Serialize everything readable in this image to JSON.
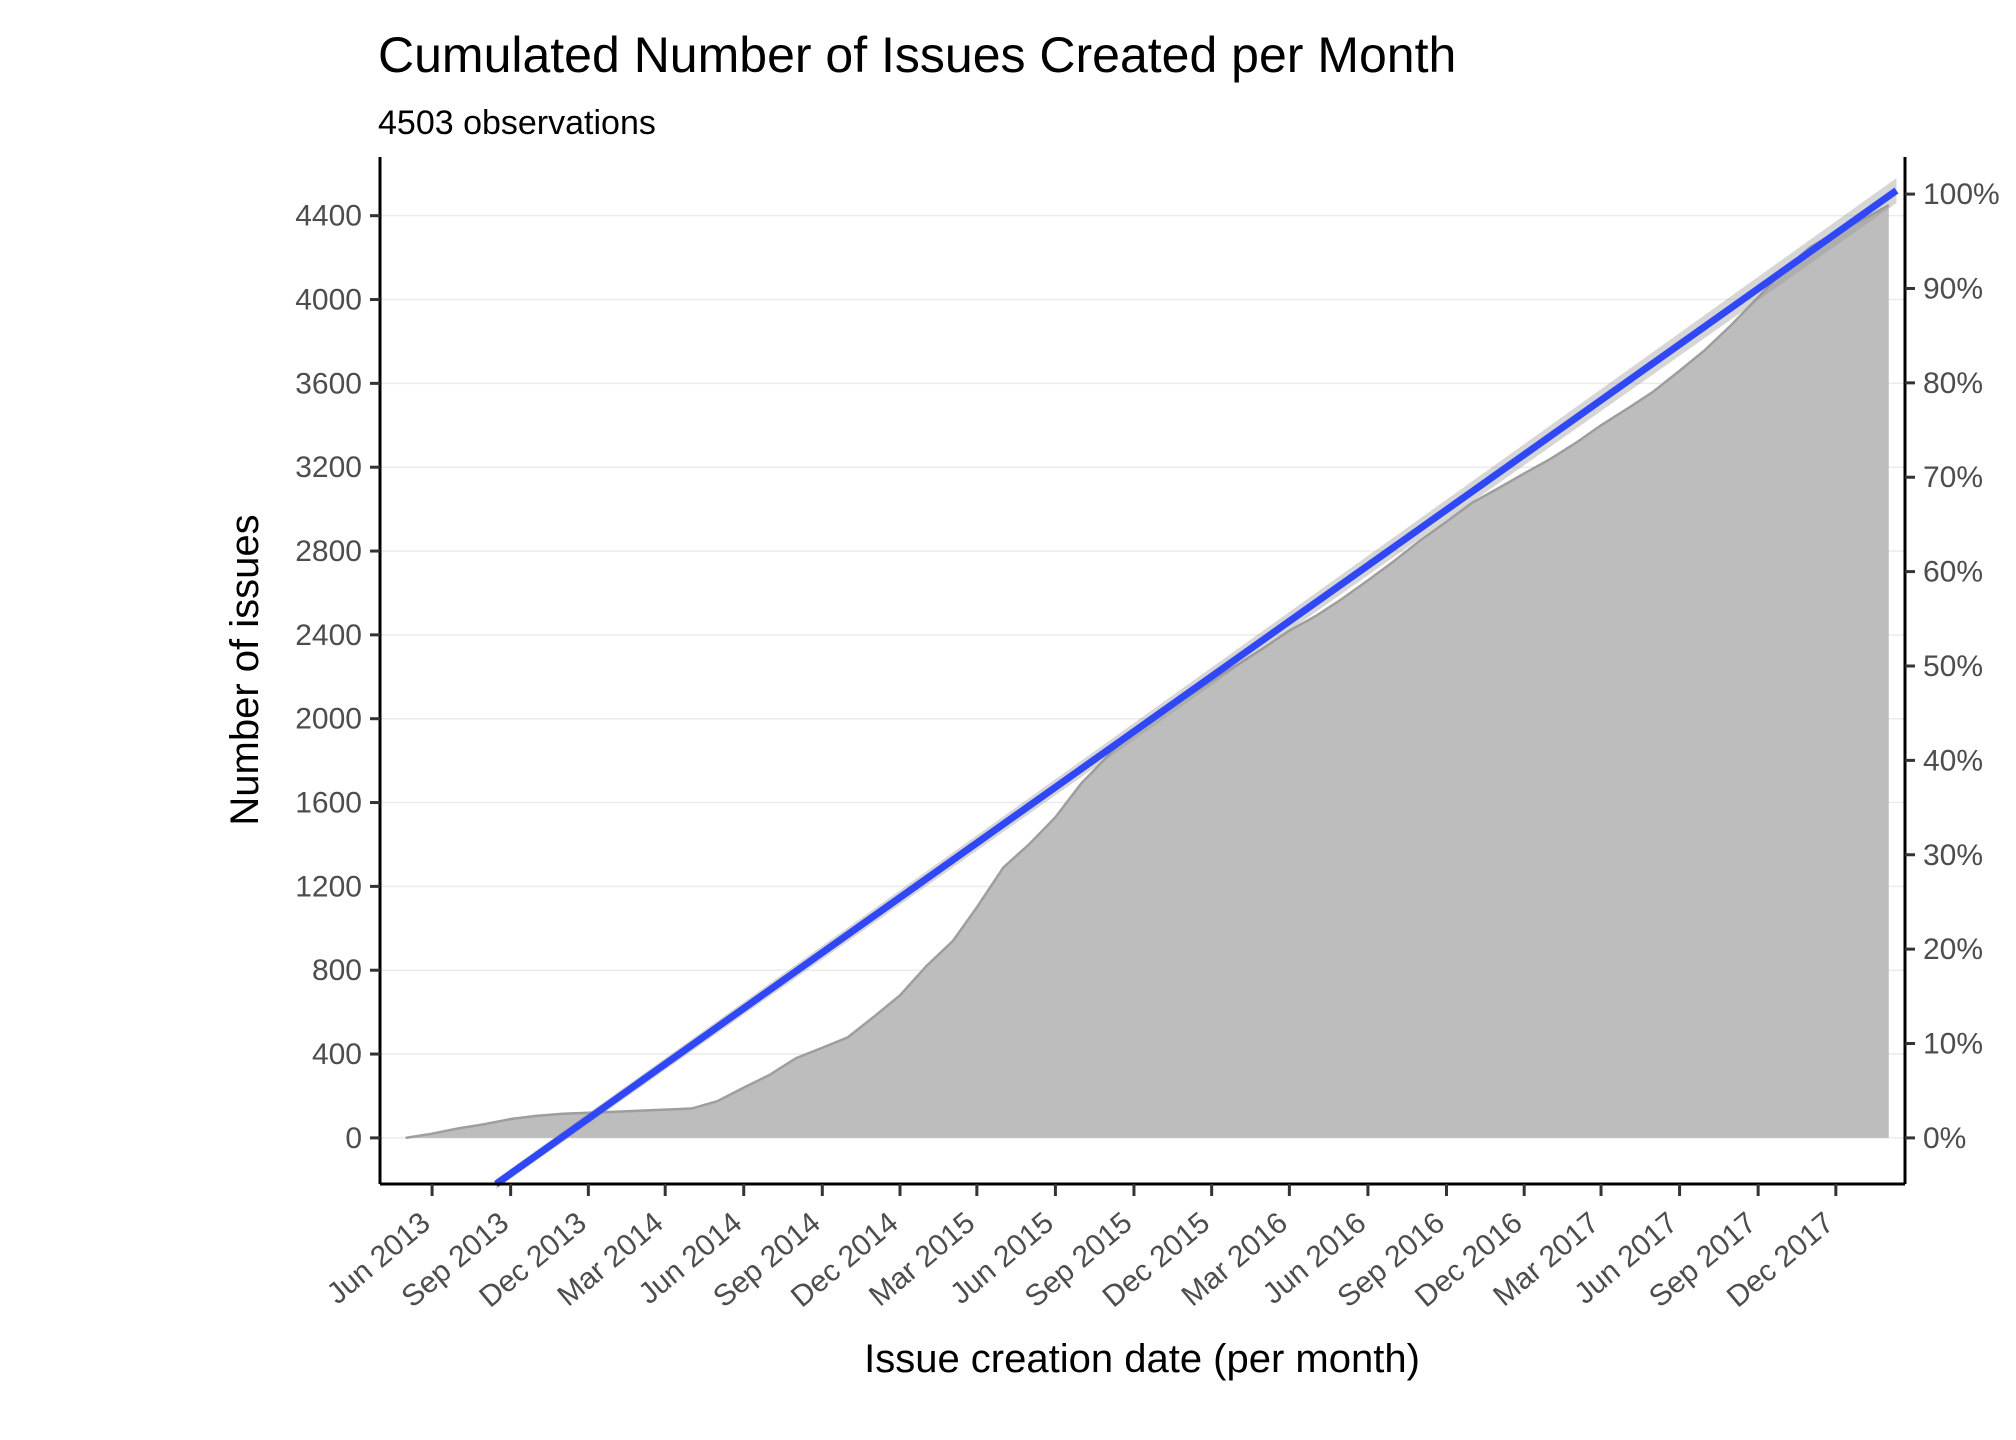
{
  "chart_data": {
    "type": "area",
    "title": "Cumulated Number of Issues Created per Month",
    "subtitle": "4503 observations",
    "xlabel": "Issue creation date (per month)",
    "ylabel": "Number of issues",
    "x_tick_labels": [
      "Jun 2013",
      "Sep 2013",
      "Dec 2013",
      "Mar 2014",
      "Jun 2014",
      "Sep 2014",
      "Dec 2014",
      "Mar 2015",
      "Jun 2015",
      "Sep 2015",
      "Dec 2015",
      "Mar 2016",
      "Jun 2016",
      "Sep 2016",
      "Dec 2016",
      "Mar 2017",
      "Jun 2017",
      "Sep 2017",
      "Dec 2017"
    ],
    "y_ticks": [
      0,
      400,
      800,
      1200,
      1600,
      2000,
      2400,
      2800,
      3200,
      3600,
      4000,
      4400
    ],
    "y_tick_labels": [
      "0",
      "400",
      "800",
      "1200",
      "1600",
      "2000",
      "2400",
      "2800",
      "3200",
      "3600",
      "4000",
      "4400"
    ],
    "y2_tick_labels": [
      "0%",
      "10%",
      "20%",
      "30%",
      "40%",
      "50%",
      "60%",
      "70%",
      "80%",
      "90%",
      "100%"
    ],
    "y2_max_value": 4503,
    "ylim": [
      -220,
      4680
    ],
    "xlim": [
      "2013-04-01",
      "2018-02-20"
    ],
    "grid": "horizontal major lines",
    "series": [
      {
        "kind": "cumulative_area",
        "x": [
          "2013-05",
          "2013-06",
          "2013-07",
          "2013-08",
          "2013-09",
          "2013-10",
          "2013-11",
          "2013-12",
          "2014-01",
          "2014-02",
          "2014-03",
          "2014-04",
          "2014-05",
          "2014-06",
          "2014-07",
          "2014-08",
          "2014-09",
          "2014-10",
          "2014-11",
          "2014-12",
          "2015-01",
          "2015-02",
          "2015-03",
          "2015-04",
          "2015-05",
          "2015-06",
          "2015-07",
          "2015-08",
          "2015-09",
          "2015-10",
          "2015-11",
          "2015-12",
          "2016-01",
          "2016-02",
          "2016-03",
          "2016-04",
          "2016-05",
          "2016-06",
          "2016-07",
          "2016-08",
          "2016-09",
          "2016-10",
          "2016-11",
          "2016-12",
          "2017-01",
          "2017-02",
          "2017-03",
          "2017-04",
          "2017-05",
          "2017-06",
          "2017-07",
          "2017-08",
          "2017-09",
          "2017-10",
          "2017-11",
          "2017-12",
          "2018-01",
          "2018-02"
        ],
        "y": [
          0,
          20,
          45,
          65,
          90,
          105,
          115,
          120,
          125,
          130,
          135,
          140,
          175,
          240,
          300,
          380,
          430,
          480,
          580,
          680,
          820,
          940,
          1100,
          1290,
          1400,
          1530,
          1690,
          1820,
          1950,
          2020,
          2100,
          2180,
          2260,
          2340,
          2420,
          2490,
          2570,
          2660,
          2750,
          2850,
          2940,
          3030,
          3100,
          3170,
          3240,
          3320,
          3400,
          3480,
          3560,
          3660,
          3760,
          3880,
          4010,
          4140,
          4250,
          4320,
          4380,
          4450
        ]
      },
      {
        "kind": "linear_fit",
        "color": "#3047f5",
        "x": [
          "2013-08-15",
          "2018-02-10"
        ],
        "y": [
          -220,
          4520
        ],
        "confidence_band": 60
      }
    ]
  }
}
